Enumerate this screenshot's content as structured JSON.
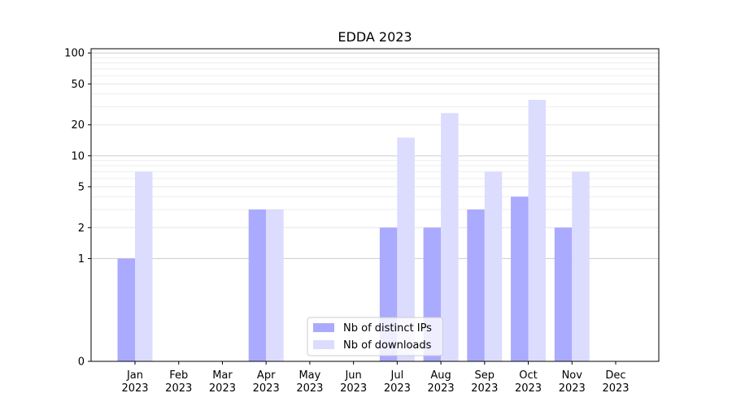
{
  "chart_data": {
    "type": "bar",
    "title": "EDDA 2023",
    "xlabel": "",
    "ylabel": "",
    "y_scale": "symlog",
    "ylim": [
      0,
      110
    ],
    "y_ticks": [
      0,
      1,
      2,
      5,
      10,
      20,
      50,
      100
    ],
    "categories": [
      [
        "Jan",
        "2023"
      ],
      [
        "Feb",
        "2023"
      ],
      [
        "Mar",
        "2023"
      ],
      [
        "Apr",
        "2023"
      ],
      [
        "May",
        "2023"
      ],
      [
        "Jun",
        "2023"
      ],
      [
        "Jul",
        "2023"
      ],
      [
        "Aug",
        "2023"
      ],
      [
        "Sep",
        "2023"
      ],
      [
        "Oct",
        "2023"
      ],
      [
        "Nov",
        "2023"
      ],
      [
        "Dec",
        "2023"
      ]
    ],
    "series": [
      {
        "name": "Nb of distinct IPs",
        "color": "#aaaaff",
        "values": [
          1,
          0,
          0,
          3,
          0,
          0,
          2,
          2,
          3,
          4,
          2,
          0
        ]
      },
      {
        "name": "Nb of downloads",
        "color": "#dcdcff",
        "values": [
          7,
          0,
          0,
          3,
          0,
          0,
          15,
          26,
          7,
          35,
          7,
          0
        ]
      }
    ],
    "grid": true,
    "legend_position": "bottom-center"
  }
}
